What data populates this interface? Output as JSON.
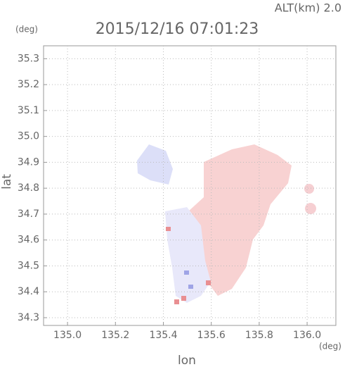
{
  "chart_data": {
    "type": "map",
    "title": "2015/12/16 07:01:23",
    "annotation": "ALT(km) 2.0",
    "x_label": "lon",
    "y_label": "lat",
    "x_unit": "(deg)",
    "y_unit": "(deg)",
    "xlim": [
      134.9,
      136.12
    ],
    "xticks": [
      {
        "value": 135,
        "label": "135.0"
      },
      135.2,
      135.4,
      135.6,
      135.8,
      {
        "value": 136,
        "label": "136.0"
      }
    ],
    "ylim": [
      34.27,
      35.35
    ],
    "yticks": [
      34.3,
      34.4,
      34.5,
      34.6,
      34.7,
      34.8,
      34.9,
      {
        "value": 35,
        "label": "35.0"
      },
      35.1,
      35.2,
      35.3
    ],
    "grid": true
  }
}
